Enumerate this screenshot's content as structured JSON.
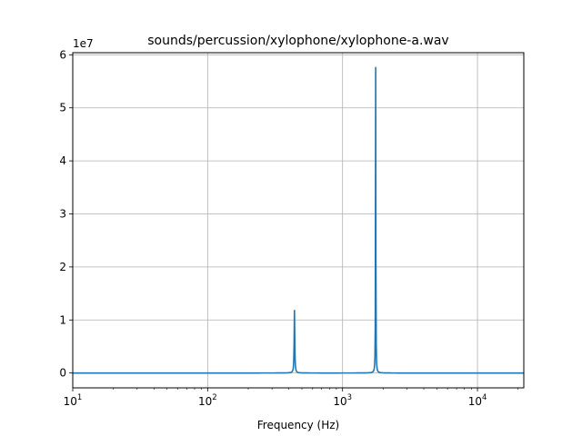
{
  "chart_data": {
    "type": "line",
    "title": "sounds/percussion/xylophone/xylophone-a.wav",
    "xlabel": "Frequency (Hz)",
    "ylabel": "",
    "x_scale": "log",
    "xlim": [
      10,
      22050
    ],
    "ylim": [
      -2800000,
      60400000
    ],
    "y_offset_label": "1e7",
    "grid": true,
    "x_ticks": [
      {
        "value": 10,
        "base": "10",
        "exp": "1"
      },
      {
        "value": 100,
        "base": "10",
        "exp": "2"
      },
      {
        "value": 1000,
        "base": "10",
        "exp": "3"
      },
      {
        "value": 10000,
        "base": "10",
        "exp": "4"
      }
    ],
    "y_ticks": [
      {
        "value": 0,
        "label": "0"
      },
      {
        "value": 10000000,
        "label": "1"
      },
      {
        "value": 20000000,
        "label": "2"
      },
      {
        "value": 30000000,
        "label": "3"
      },
      {
        "value": 40000000,
        "label": "4"
      },
      {
        "value": 50000000,
        "label": "5"
      },
      {
        "value": 60000000,
        "label": "6"
      }
    ],
    "series": [
      {
        "color": "#1f77b4",
        "peaks": [
          {
            "freq": 440,
            "amplitude": 11800000,
            "width": 0.006
          },
          {
            "freq": 1760,
            "amplitude": 57600000,
            "width": 0.003
          }
        ]
      }
    ]
  }
}
